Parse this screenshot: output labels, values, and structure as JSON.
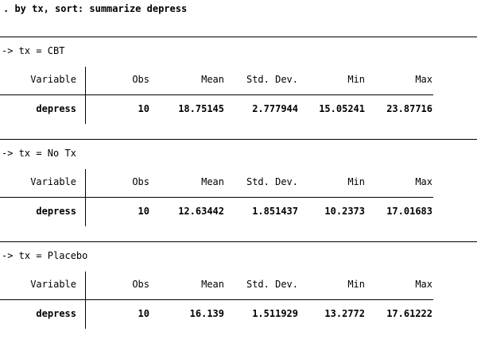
{
  "command": ". by tx, sort: summarize depress",
  "group_prefix": "-> tx = ",
  "columns": {
    "variable": "Variable",
    "obs": "Obs",
    "mean": "Mean",
    "sd": "Std. Dev.",
    "min": "Min",
    "max": "Max"
  },
  "groups": [
    {
      "label": "CBT",
      "row": {
        "variable": "depress",
        "obs": "10",
        "mean": "18.75145",
        "sd": "2.777944",
        "min": "15.05241",
        "max": "23.87716"
      }
    },
    {
      "label": "No Tx",
      "row": {
        "variable": "depress",
        "obs": "10",
        "mean": "12.63442",
        "sd": "1.851437",
        "min": "10.2373",
        "max": "17.01683"
      }
    },
    {
      "label": "Placebo",
      "row": {
        "variable": "depress",
        "obs": "10",
        "mean": "16.139",
        "sd": "1.511929",
        "min": "13.2772",
        "max": "17.61222"
      }
    }
  ]
}
